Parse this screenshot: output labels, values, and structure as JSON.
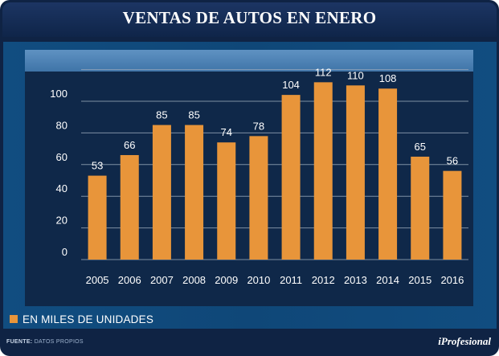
{
  "header": {
    "title": "VENTAS DE AUTOS EN ENERO"
  },
  "footer": {
    "source_label": "FUENTE:",
    "source_value": "DATOS PROPIOS",
    "brand": "iProfesional"
  },
  "colors": {
    "bar": "#e8953a",
    "grid": "#9aa9bb",
    "background": "#0f2849"
  },
  "chart_data": {
    "type": "bar",
    "title": "VENTAS DE AUTOS EN ENERO",
    "xlabel": "",
    "ylabel": "",
    "categories": [
      "2005",
      "2006",
      "2007",
      "2008",
      "2009",
      "2010",
      "2011",
      "2012",
      "2013",
      "2014",
      "2015",
      "2016"
    ],
    "values": [
      53,
      66,
      85,
      85,
      74,
      78,
      104,
      112,
      110,
      108,
      65,
      56
    ],
    "ylim": [
      0,
      120
    ],
    "yticks": [
      0,
      20,
      40,
      60,
      80,
      100
    ],
    "grid": true,
    "legend": {
      "position": "bottom-left",
      "label": "EN MILES DE UNIDADES"
    }
  }
}
